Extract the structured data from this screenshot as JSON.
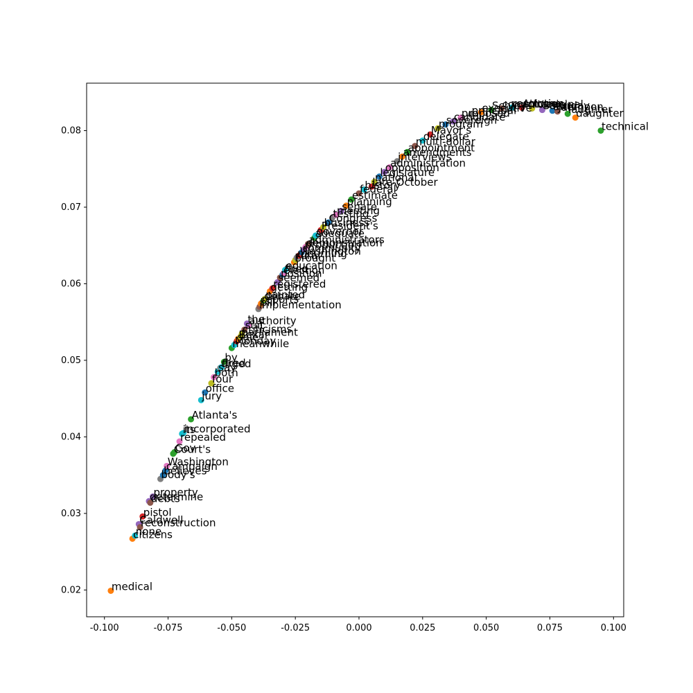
{
  "chart_data": {
    "type": "scatter",
    "title": "",
    "xlabel": "",
    "ylabel": "",
    "xlim": [
      -0.107,
      0.104
    ],
    "ylim": [
      0.0165,
      0.0862
    ],
    "xticks": [
      "-0.100",
      "-0.075",
      "-0.050",
      "-0.025",
      "0.000",
      "0.025",
      "0.050",
      "0.075",
      "0.100"
    ],
    "xtick_values": [
      -0.1,
      -0.075,
      -0.05,
      -0.025,
      0.0,
      0.025,
      0.05,
      0.075,
      0.1
    ],
    "yticks": [
      "0.02",
      "0.03",
      "0.04",
      "0.05",
      "0.06",
      "0.07",
      "0.08"
    ],
    "ytick_values": [
      0.02,
      0.03,
      0.04,
      0.05,
      0.06,
      0.07,
      0.08
    ],
    "grid": false,
    "legend": "none",
    "palette": [
      "#1f77b4",
      "#ff7f0e",
      "#2ca02c",
      "#d62728",
      "#9467bd",
      "#8c564b",
      "#e377c2",
      "#7f7f7f",
      "#bcbd22",
      "#17becf"
    ],
    "points": [
      {
        "label": "medical",
        "x": -0.0975,
        "y": 0.0199,
        "color": "#ff7f0e"
      },
      {
        "label": "citizens",
        "x": -0.089,
        "y": 0.0267,
        "color": "#ff7f0e"
      },
      {
        "label": "none",
        "x": -0.088,
        "y": 0.0271,
        "color": "#17becf"
      },
      {
        "label": "Caldwell",
        "x": -0.0865,
        "y": 0.0286,
        "color": "#9467bd"
      },
      {
        "label": "reconstruction",
        "x": -0.086,
        "y": 0.0282,
        "color": "#8c564b"
      },
      {
        "label": "pistol",
        "x": -0.085,
        "y": 0.0296,
        "color": "#d62728"
      },
      {
        "label": "determine",
        "x": -0.0825,
        "y": 0.0316,
        "color": "#9467bd"
      },
      {
        "label": "debts",
        "x": -0.082,
        "y": 0.0314,
        "color": "#8c564b"
      },
      {
        "label": "property",
        "x": -0.081,
        "y": 0.0322,
        "color": "#9467bd"
      },
      {
        "label": "body's",
        "x": -0.078,
        "y": 0.0345,
        "color": "#7f7f7f"
      },
      {
        "label": "believes",
        "x": -0.077,
        "y": 0.035,
        "color": "#1f77b4"
      },
      {
        "label": "campaign",
        "x": -0.076,
        "y": 0.0356,
        "color": "#1f77b4"
      },
      {
        "label": "Washington",
        "x": -0.0755,
        "y": 0.0362,
        "color": "#e377c2"
      },
      {
        "label": "Court's",
        "x": -0.073,
        "y": 0.0378,
        "color": "#2ca02c"
      },
      {
        "label": "Gov",
        "x": -0.0725,
        "y": 0.038,
        "color": "#2ca02c"
      },
      {
        "label": "repealed",
        "x": -0.0705,
        "y": 0.0394,
        "color": "#e377c2"
      },
      {
        "label": "its",
        "x": -0.0695,
        "y": 0.0404,
        "color": "#17becf"
      },
      {
        "label": "incorporated",
        "x": -0.069,
        "y": 0.0405,
        "color": "#17becf"
      },
      {
        "label": "Atlanta's",
        "x": -0.066,
        "y": 0.0423,
        "color": "#2ca02c"
      },
      {
        "label": "jury",
        "x": -0.062,
        "y": 0.0448,
        "color": "#17becf"
      },
      {
        "label": "office",
        "x": -0.0605,
        "y": 0.0458,
        "color": "#1f77b4"
      },
      {
        "label": "four",
        "x": -0.058,
        "y": 0.047,
        "color": "#bcbd22"
      },
      {
        "label": "both",
        "x": -0.057,
        "y": 0.0478,
        "color": "#e377c2"
      },
      {
        "label": "say",
        "x": -0.0555,
        "y": 0.0485,
        "color": "#17becf"
      },
      {
        "label": "urged",
        "x": -0.0545,
        "y": 0.049,
        "color": "#7f7f7f"
      },
      {
        "label": "fired",
        "x": -0.054,
        "y": 0.0491,
        "color": "#17becf"
      },
      {
        "label": "by",
        "x": -0.053,
        "y": 0.0498,
        "color": "#2ca02c"
      },
      {
        "label": "meanwhile",
        "x": -0.05,
        "y": 0.0516,
        "color": "#2ca02c"
      },
      {
        "label": "Monday",
        "x": -0.049,
        "y": 0.052,
        "color": "#17becf"
      },
      {
        "label": "sale",
        "x": -0.048,
        "y": 0.0525,
        "color": "#d62728"
      },
      {
        "label": "Bexar",
        "x": -0.0475,
        "y": 0.0528,
        "color": "#ff7f0e"
      },
      {
        "label": "parliament",
        "x": -0.0465,
        "y": 0.0531,
        "color": "#bcbd22"
      },
      {
        "label": "criticisms",
        "x": -0.046,
        "y": 0.0535,
        "color": "#bcbd22"
      },
      {
        "label": "suit",
        "x": -0.045,
        "y": 0.054,
        "color": "#8c564b"
      },
      {
        "label": "authority",
        "x": -0.0435,
        "y": 0.0546,
        "color": "#e377c2"
      },
      {
        "label": "the",
        "x": -0.044,
        "y": 0.0548,
        "color": "#9467bd"
      },
      {
        "label": "implementation",
        "x": -0.0395,
        "y": 0.0567,
        "color": "#7f7f7f"
      },
      {
        "label": "bill",
        "x": -0.039,
        "y": 0.057,
        "color": "#8c564b"
      },
      {
        "label": "reports",
        "x": -0.0385,
        "y": 0.0574,
        "color": "#ff7f0e"
      },
      {
        "label": "debate",
        "x": -0.0375,
        "y": 0.0578,
        "color": "#2ca02c"
      },
      {
        "label": "painted",
        "x": -0.037,
        "y": 0.058,
        "color": "#bcbd22"
      },
      {
        "label": "getting",
        "x": -0.035,
        "y": 0.059,
        "color": "#ff7f0e"
      },
      {
        "label": "registered",
        "x": -0.034,
        "y": 0.0594,
        "color": "#d62728"
      },
      {
        "label": "seemed",
        "x": -0.032,
        "y": 0.0602,
        "color": "#9467bd"
      },
      {
        "label": "position",
        "x": -0.031,
        "y": 0.0608,
        "color": "#8c564b"
      },
      {
        "label": "election",
        "x": -0.03,
        "y": 0.0612,
        "color": "#1f77b4"
      },
      {
        "label": "fired",
        "x": -0.0295,
        "y": 0.0614,
        "color": "#e377c2"
      },
      {
        "label": "education",
        "x": -0.029,
        "y": 0.0618,
        "color": "#17becf"
      },
      {
        "label": "brought",
        "x": -0.0255,
        "y": 0.0628,
        "color": "#ff7f0e"
      },
      {
        "label": "rural",
        "x": -0.025,
        "y": 0.0631,
        "color": "#bcbd22"
      },
      {
        "label": "mourning",
        "x": -0.0245,
        "y": 0.0634,
        "color": "#7f7f7f"
      },
      {
        "label": "Washington",
        "x": -0.0235,
        "y": 0.0637,
        "color": "#d62728"
      },
      {
        "label": "community",
        "x": -0.0225,
        "y": 0.0641,
        "color": "#1f77b4"
      },
      {
        "label": "production",
        "x": -0.0215,
        "y": 0.0645,
        "color": "#9467bd"
      },
      {
        "label": "demonstration",
        "x": -0.021,
        "y": 0.0648,
        "color": "#e377c2"
      },
      {
        "label": "administrators",
        "x": -0.02,
        "y": 0.0652,
        "color": "#8c564b"
      },
      {
        "label": "adequate",
        "x": -0.0175,
        "y": 0.066,
        "color": "#2ca02c"
      },
      {
        "label": "governor",
        "x": -0.017,
        "y": 0.0663,
        "color": "#17becf"
      },
      {
        "label": "President's",
        "x": -0.015,
        "y": 0.067,
        "color": "#d62728"
      },
      {
        "label": "business",
        "x": -0.014,
        "y": 0.0674,
        "color": "#bcbd22"
      },
      {
        "label": "Congress",
        "x": -0.012,
        "y": 0.068,
        "color": "#1f77b4"
      },
      {
        "label": "testing",
        "x": -0.0105,
        "y": 0.0686,
        "color": "#7f7f7f"
      },
      {
        "label": "meeting",
        "x": -0.009,
        "y": 0.069,
        "color": "#e377c2"
      },
      {
        "label": "senate",
        "x": -0.007,
        "y": 0.0695,
        "color": "#9467bd"
      },
      {
        "label": "planning",
        "x": -0.005,
        "y": 0.0702,
        "color": "#ff7f0e"
      },
      {
        "label": "estimate",
        "x": -0.003,
        "y": 0.071,
        "color": "#2ca02c"
      },
      {
        "label": "federal",
        "x": 0.0,
        "y": 0.0718,
        "color": "#8c564b"
      },
      {
        "label": "history",
        "x": 0.002,
        "y": 0.0723,
        "color": "#17becf"
      },
      {
        "label": "late-October",
        "x": 0.005,
        "y": 0.0727,
        "color": "#d62728"
      },
      {
        "label": "national",
        "x": 0.006,
        "y": 0.0733,
        "color": "#bcbd22"
      },
      {
        "label": "legislature",
        "x": 0.008,
        "y": 0.074,
        "color": "#1f77b4"
      },
      {
        "label": "opposition",
        "x": 0.01,
        "y": 0.0746,
        "color": "#9467bd"
      },
      {
        "label": "administration",
        "x": 0.012,
        "y": 0.0752,
        "color": "#e377c2"
      },
      {
        "label": "interviews",
        "x": 0.015,
        "y": 0.076,
        "color": "#7f7f7f"
      },
      {
        "label": "amendments",
        "x": 0.017,
        "y": 0.0766,
        "color": "#ff7f0e"
      },
      {
        "label": "appointment",
        "x": 0.019,
        "y": 0.0772,
        "color": "#2ca02c"
      },
      {
        "label": "multi-dollar",
        "x": 0.022,
        "y": 0.078,
        "color": "#8c564b"
      },
      {
        "label": "delegate",
        "x": 0.025,
        "y": 0.0787,
        "color": "#17becf"
      },
      {
        "label": "Mayor's",
        "x": 0.028,
        "y": 0.0795,
        "color": "#d62728"
      },
      {
        "label": "program",
        "x": 0.031,
        "y": 0.0803,
        "color": "#bcbd22"
      },
      {
        "label": "sovereign",
        "x": 0.034,
        "y": 0.0808,
        "color": "#1f77b4"
      },
      {
        "label": "candidate",
        "x": 0.037,
        "y": 0.0812,
        "color": "#9467bd"
      },
      {
        "label": "proposed",
        "x": 0.04,
        "y": 0.0817,
        "color": "#e377c2"
      },
      {
        "label": "principal",
        "x": 0.044,
        "y": 0.0821,
        "color": "#7f7f7f"
      },
      {
        "label": "executive",
        "x": 0.048,
        "y": 0.0824,
        "color": "#ff7f0e"
      },
      {
        "label": "Schley",
        "x": 0.052,
        "y": 0.0827,
        "color": "#2ca02c"
      },
      {
        "label": "committee",
        "x": 0.056,
        "y": 0.0829,
        "color": "#8c564b"
      },
      {
        "label": "resolution",
        "x": 0.06,
        "y": 0.083,
        "color": "#17becf"
      },
      {
        "label": "Attorney",
        "x": 0.064,
        "y": 0.083,
        "color": "#d62728"
      },
      {
        "label": "municipal",
        "x": 0.068,
        "y": 0.0829,
        "color": "#bcbd22"
      },
      {
        "label": "Saturday",
        "x": 0.072,
        "y": 0.0827,
        "color": "#9467bd"
      },
      {
        "label": "afternoon",
        "x": 0.076,
        "y": 0.0826,
        "color": "#1f77b4"
      },
      {
        "label": "Jan",
        "x": 0.078,
        "y": 0.0825,
        "color": "#8c564b"
      },
      {
        "label": "laughter",
        "x": 0.082,
        "y": 0.0822,
        "color": "#2ca02c"
      },
      {
        "label": "daughter",
        "x": 0.085,
        "y": 0.0817,
        "color": "#ff7f0e"
      },
      {
        "label": "technical",
        "x": 0.095,
        "y": 0.08,
        "color": "#2ca02c"
      }
    ]
  }
}
